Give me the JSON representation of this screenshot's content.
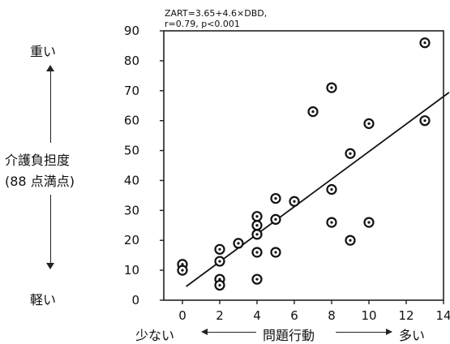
{
  "chart_data": {
    "type": "scatter",
    "annotation": {
      "line1": "ZART=3.65+4.6×DBD,",
      "line2": "r=0.79, p<0.001"
    },
    "y_axis": {
      "ticks": [
        "0",
        "10",
        "20",
        "30",
        "40",
        "50",
        "60",
        "70",
        "80",
        "90"
      ],
      "range": [
        0,
        90
      ],
      "label_line1": "介護負担度",
      "label_line2": "(88 点満点)",
      "top_label": "重い",
      "bottom_label": "軽い"
    },
    "x_axis": {
      "ticks": [
        "0",
        "2",
        "4",
        "6",
        "8",
        "10",
        "12",
        "14"
      ],
      "range": [
        -1,
        14
      ],
      "label": "問題行動",
      "left_label": "少ない",
      "right_label": "多い"
    },
    "points": [
      {
        "x": 0,
        "y": 12
      },
      {
        "x": 0,
        "y": 10
      },
      {
        "x": 2,
        "y": 17
      },
      {
        "x": 2,
        "y": 13
      },
      {
        "x": 2,
        "y": 7
      },
      {
        "x": 2,
        "y": 5
      },
      {
        "x": 3,
        "y": 19
      },
      {
        "x": 4,
        "y": 28
      },
      {
        "x": 4,
        "y": 25
      },
      {
        "x": 4,
        "y": 22
      },
      {
        "x": 4,
        "y": 16
      },
      {
        "x": 4,
        "y": 7
      },
      {
        "x": 5,
        "y": 34
      },
      {
        "x": 5,
        "y": 27
      },
      {
        "x": 5,
        "y": 16
      },
      {
        "x": 6,
        "y": 33
      },
      {
        "x": 7,
        "y": 63
      },
      {
        "x": 8,
        "y": 71
      },
      {
        "x": 8,
        "y": 37
      },
      {
        "x": 8,
        "y": 26
      },
      {
        "x": 9,
        "y": 49
      },
      {
        "x": 9,
        "y": 20
      },
      {
        "x": 10,
        "y": 59
      },
      {
        "x": 10,
        "y": 26
      },
      {
        "x": 13,
        "y": 86
      },
      {
        "x": 13,
        "y": 60
      }
    ],
    "regression": {
      "intercept": 3.65,
      "slope": 4.6,
      "x_from": 0.2,
      "x_to": 14.5
    }
  }
}
